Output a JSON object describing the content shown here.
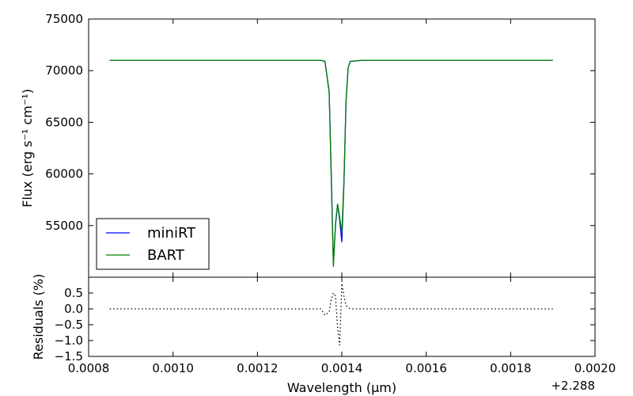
{
  "chart_data": {
    "type": "line",
    "x_offset_label": "+2.288",
    "xlabel": "Wavelength  (µm)",
    "xlim": [
      0.0008,
      0.002
    ],
    "xticks": [
      "0.0008",
      "0.0010",
      "0.0012",
      "0.0014",
      "0.0016",
      "0.0018",
      "0.0020"
    ],
    "top_panel": {
      "ylabel": "Flux (erg s⁻¹ cm⁻¹)",
      "ylim": [
        50000,
        75000
      ],
      "yticks": [
        "55000",
        "60000",
        "65000",
        "70000",
        "75000"
      ],
      "legend": {
        "position": "lower-left"
      },
      "series": [
        {
          "name": "miniRT",
          "color": "#0000ff",
          "x": [
            0.00085,
            0.0012,
            0.0013,
            0.00135,
            0.00136,
            0.00137,
            0.001375,
            0.00138,
            0.001385,
            0.00139,
            0.001395,
            0.0014,
            0.001405,
            0.00141,
            0.001415,
            0.00142,
            0.00145,
            0.0016,
            0.0019
          ],
          "y": [
            71000,
            71000,
            71000,
            71000,
            70900,
            68000,
            60000,
            51300,
            55000,
            57100,
            55500,
            53400,
            59000,
            67000,
            70300,
            70900,
            71000,
            71000,
            71000
          ]
        },
        {
          "name": "BART",
          "color": "#008000",
          "x": [
            0.00085,
            0.0012,
            0.0013,
            0.00135,
            0.00136,
            0.00137,
            0.001375,
            0.00138,
            0.001385,
            0.00139,
            0.001395,
            0.0014,
            0.001405,
            0.00141,
            0.001415,
            0.00142,
            0.00145,
            0.0016,
            0.0019
          ],
          "y": [
            71000,
            71000,
            71000,
            71000,
            70900,
            67900,
            59500,
            51000,
            55200,
            57100,
            55800,
            54300,
            59300,
            67100,
            70300,
            70900,
            71000,
            71000,
            71000
          ]
        }
      ]
    },
    "bottom_panel": {
      "ylabel": "Residuals (%)",
      "ylim": [
        -1.5,
        1.0
      ],
      "yticks": [
        "−1.5",
        "−1.0",
        "−0.5",
        "0.0",
        "0.5"
      ],
      "series": [
        {
          "name": "",
          "style": "dotted",
          "color": "#000000",
          "x": [
            0.00085,
            0.00135,
            0.00136,
            0.00137,
            0.001375,
            0.00138,
            0.001385,
            0.00139,
            0.001395,
            0.0014,
            0.001405,
            0.00141,
            0.00142,
            0.0019
          ],
          "y": [
            0.0,
            0.0,
            -0.2,
            -0.1,
            0.3,
            0.5,
            0.4,
            -0.6,
            -1.15,
            0.8,
            0.4,
            0.1,
            0.0,
            0.0
          ]
        }
      ]
    }
  }
}
